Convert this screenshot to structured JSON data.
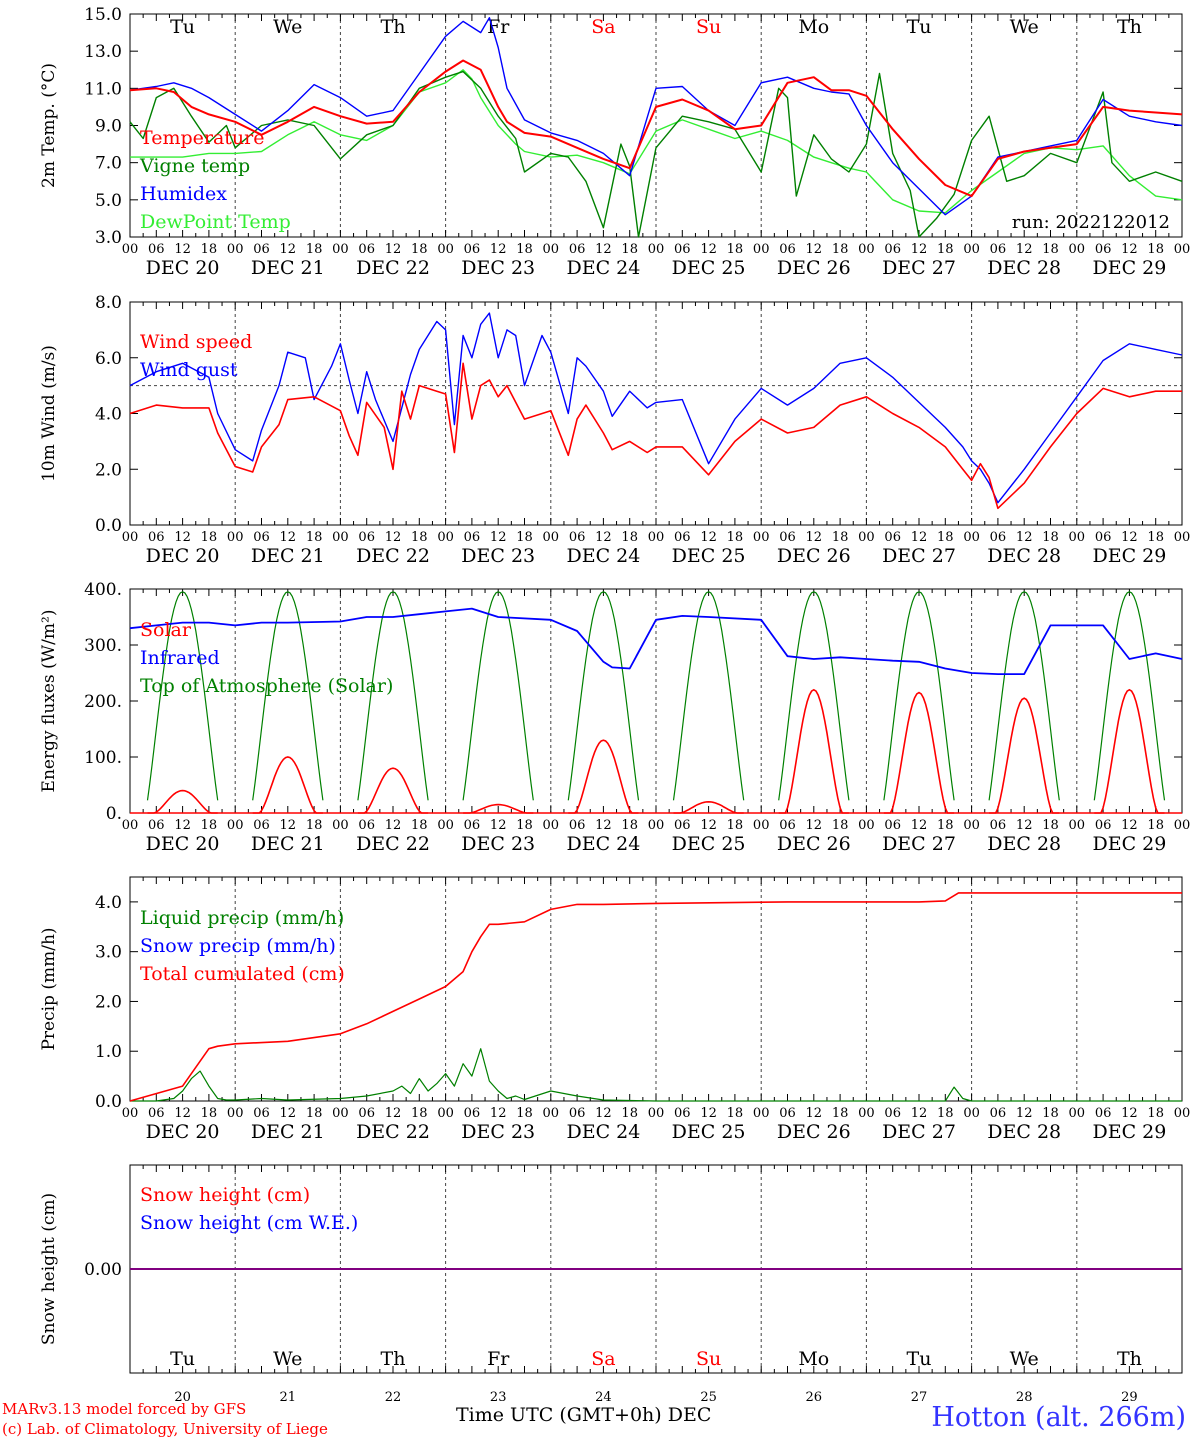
{
  "colors": {
    "red": "#ff0000",
    "green": "#008000",
    "blue": "#0000ff",
    "lightgreen": "#33ee33",
    "purple": "#800080",
    "axis": "#000000"
  },
  "days": [
    "Tu",
    "We",
    "Th",
    "Fr",
    "Sa",
    "Su",
    "Mo",
    "Tu",
    "We",
    "Th"
  ],
  "weekend_indices": [
    4,
    5
  ],
  "dates": [
    "DEC 20",
    "DEC 21",
    "DEC 22",
    "DEC 23",
    "DEC 24",
    "DEC 25",
    "DEC 26",
    "DEC 27",
    "DEC 28",
    "DEC 29"
  ],
  "hours": [
    "00",
    "06",
    "12",
    "18"
  ],
  "hour_end": "00",
  "day_numbers": [
    "20",
    "21",
    "22",
    "23",
    "24",
    "25",
    "26",
    "27",
    "28",
    "29"
  ],
  "run_label": "run: 2022122012",
  "footer": {
    "model": "MARv3.13 model forced by GFS",
    "lab": "(c) Lab. of Climatology, University of Liege",
    "xaxis_title": "Time UTC (GMT+0h) DEC",
    "station": "Hotton (alt. 266m)"
  },
  "chart_data": [
    {
      "id": "temp",
      "type": "line",
      "ylabel": "2m Temp. (°C)",
      "ylim": [
        3,
        15
      ],
      "yticks": [
        "3.0",
        "5.0",
        "7.0",
        "9.0",
        "11.0",
        "13.0",
        "15.0"
      ],
      "ytick_values": [
        3,
        5,
        7,
        9,
        11,
        13,
        15
      ],
      "x_unit": "hours since DEC 20 00 UTC",
      "xlim": [
        0,
        240
      ],
      "series": [
        {
          "name": "Temperature",
          "color": "#ff0000",
          "x": [
            0,
            6,
            10,
            14,
            18,
            24,
            30,
            36,
            42,
            48,
            54,
            60,
            66,
            72,
            76,
            80,
            84,
            86,
            90,
            96,
            102,
            108,
            114,
            120,
            126,
            132,
            138,
            144,
            150,
            156,
            160,
            164,
            168,
            174,
            180,
            186,
            192,
            198,
            204,
            210,
            216,
            222,
            228,
            234,
            240
          ],
          "y": [
            10.9,
            11.0,
            10.8,
            10.0,
            9.6,
            9.2,
            8.5,
            9.2,
            10.0,
            9.5,
            9.1,
            9.2,
            10.8,
            11.9,
            12.5,
            12.0,
            10.0,
            9.2,
            8.6,
            8.4,
            7.8,
            7.2,
            6.7,
            10.0,
            10.4,
            9.8,
            8.8,
            9.0,
            11.3,
            11.6,
            10.9,
            10.9,
            10.6,
            8.8,
            7.2,
            5.8,
            5.2,
            7.2,
            7.6,
            7.8,
            8.0,
            10.0,
            9.8,
            9.7,
            9.6
          ]
        },
        {
          "name": "Vigne temp",
          "color": "#008000",
          "x": [
            0,
            3,
            6,
            10,
            14,
            18,
            22,
            24,
            30,
            36,
            42,
            48,
            54,
            60,
            66,
            72,
            76,
            80,
            84,
            88,
            90,
            96,
            100,
            104,
            108,
            112,
            114,
            116,
            120,
            126,
            132,
            138,
            144,
            148,
            150,
            152,
            156,
            160,
            164,
            168,
            171,
            174,
            178,
            180,
            184,
            188,
            192,
            196,
            200,
            204,
            210,
            216,
            222,
            224,
            228,
            234,
            240
          ],
          "y": [
            9.2,
            8.3,
            10.5,
            11.0,
            9.5,
            8.1,
            9.0,
            7.8,
            9.0,
            9.3,
            9.0,
            7.2,
            8.5,
            9.0,
            11.0,
            11.6,
            11.9,
            11.0,
            9.5,
            8.3,
            6.5,
            7.5,
            7.3,
            6.0,
            3.5,
            8.0,
            6.8,
            3.0,
            7.8,
            9.5,
            9.2,
            8.8,
            6.5,
            11.0,
            10.5,
            5.2,
            8.5,
            7.2,
            6.5,
            8.0,
            11.8,
            7.5,
            5.5,
            3.0,
            4.0,
            5.3,
            8.2,
            9.5,
            6.0,
            6.3,
            7.5,
            7.0,
            10.8,
            7.0,
            6.0,
            6.5,
            6.0
          ]
        },
        {
          "name": "Humidex",
          "color": "#0000ff",
          "x": [
            0,
            6,
            10,
            14,
            18,
            24,
            30,
            36,
            42,
            48,
            54,
            60,
            66,
            72,
            76,
            80,
            82,
            84,
            86,
            90,
            96,
            102,
            108,
            114,
            120,
            126,
            132,
            138,
            144,
            150,
            156,
            160,
            164,
            168,
            174,
            180,
            186,
            192,
            198,
            204,
            210,
            216,
            222,
            228,
            234,
            240
          ],
          "y": [
            10.9,
            11.1,
            11.3,
            11.0,
            10.5,
            9.6,
            8.7,
            9.8,
            11.2,
            10.5,
            9.5,
            9.8,
            11.8,
            13.8,
            14.6,
            14.0,
            14.8,
            13.2,
            11.0,
            9.3,
            8.6,
            8.2,
            7.5,
            6.3,
            11.0,
            11.1,
            9.8,
            9.0,
            11.3,
            11.6,
            11.0,
            10.8,
            10.7,
            9.0,
            7.0,
            5.6,
            4.2,
            5.2,
            7.3,
            7.6,
            7.9,
            8.2,
            10.4,
            9.5,
            9.2,
            9.0
          ]
        },
        {
          "name": "DewPoint Temp",
          "color": "#33ee33",
          "x": [
            0,
            6,
            12,
            18,
            24,
            30,
            36,
            42,
            48,
            54,
            60,
            66,
            72,
            76,
            78,
            80,
            84,
            88,
            90,
            96,
            102,
            108,
            114,
            120,
            126,
            132,
            138,
            144,
            150,
            156,
            160,
            164,
            168,
            174,
            180,
            186,
            192,
            198,
            204,
            210,
            216,
            222,
            228,
            234,
            240
          ],
          "y": [
            7.3,
            7.3,
            7.3,
            7.5,
            7.5,
            7.6,
            8.5,
            9.2,
            8.5,
            8.2,
            9.0,
            10.8,
            11.3,
            12.0,
            11.5,
            10.5,
            9.0,
            8.0,
            7.6,
            7.3,
            7.4,
            7.0,
            6.4,
            8.7,
            9.3,
            8.8,
            8.3,
            8.7,
            8.2,
            7.3,
            7.0,
            6.7,
            6.5,
            5.0,
            4.4,
            4.3,
            5.5,
            6.5,
            7.5,
            7.8,
            7.7,
            7.9,
            6.3,
            5.2,
            5.0
          ]
        }
      ]
    },
    {
      "id": "wind",
      "type": "line",
      "ylabel": "10m Wind (m/s)",
      "ylim": [
        0,
        8
      ],
      "yticks": [
        "0.0",
        "2.0",
        "4.0",
        "6.0",
        "8.0"
      ],
      "ytick_values": [
        0,
        2,
        4,
        6,
        8
      ],
      "hline": 5,
      "x_unit": "hours since DEC 20 00 UTC",
      "xlim": [
        0,
        240
      ],
      "series": [
        {
          "name": "Wind speed",
          "color": "#ff0000",
          "x": [
            0,
            6,
            12,
            18,
            20,
            24,
            28,
            30,
            34,
            36,
            42,
            48,
            50,
            52,
            54,
            58,
            60,
            62,
            64,
            66,
            70,
            72,
            74,
            76,
            78,
            80,
            82,
            84,
            86,
            90,
            96,
            100,
            102,
            104,
            108,
            110,
            114,
            118,
            120,
            126,
            132,
            138,
            144,
            150,
            156,
            162,
            168,
            174,
            180,
            186,
            190,
            192,
            194,
            196,
            198,
            204,
            210,
            216,
            222,
            228,
            234,
            240
          ],
          "y": [
            4.0,
            4.3,
            4.2,
            4.2,
            3.3,
            2.1,
            1.9,
            2.8,
            3.6,
            4.5,
            4.6,
            4.1,
            3.2,
            2.5,
            4.4,
            3.5,
            2.0,
            4.8,
            3.8,
            5.0,
            4.8,
            4.7,
            2.6,
            5.8,
            3.8,
            5.0,
            5.2,
            4.6,
            5.0,
            3.8,
            4.1,
            2.5,
            3.8,
            4.3,
            3.3,
            2.7,
            3.0,
            2.6,
            2.8,
            2.8,
            1.8,
            3.0,
            3.8,
            3.3,
            3.5,
            4.3,
            4.6,
            4.0,
            3.5,
            2.8,
            2.0,
            1.6,
            2.2,
            1.7,
            0.6,
            1.5,
            2.8,
            4.0,
            4.9,
            4.6,
            4.8,
            4.8
          ]
        },
        {
          "name": "Wind gust",
          "color": "#0000ff",
          "x": [
            0,
            6,
            12,
            18,
            20,
            24,
            28,
            30,
            34,
            36,
            40,
            42,
            46,
            48,
            50,
            52,
            54,
            56,
            60,
            64,
            66,
            70,
            72,
            74,
            76,
            78,
            80,
            82,
            84,
            86,
            88,
            90,
            94,
            96,
            100,
            102,
            104,
            108,
            110,
            114,
            118,
            120,
            126,
            132,
            138,
            144,
            150,
            156,
            162,
            168,
            174,
            180,
            186,
            190,
            192,
            194,
            196,
            198,
            204,
            210,
            216,
            222,
            228,
            234,
            240
          ],
          "y": [
            5.0,
            5.5,
            5.8,
            5.3,
            4.0,
            2.7,
            2.3,
            3.4,
            5.0,
            6.2,
            6.0,
            4.5,
            5.7,
            6.5,
            5.2,
            4.0,
            5.5,
            4.5,
            3.0,
            5.4,
            6.3,
            7.3,
            7.0,
            3.6,
            6.8,
            6.0,
            7.2,
            7.6,
            6.0,
            7.0,
            6.8,
            5.0,
            6.8,
            6.2,
            4.0,
            6.0,
            5.7,
            4.8,
            3.9,
            4.8,
            4.2,
            4.4,
            4.5,
            2.2,
            3.8,
            4.9,
            4.3,
            4.9,
            5.8,
            6.0,
            5.3,
            4.4,
            3.5,
            2.8,
            2.3,
            2.0,
            1.5,
            0.8,
            2.0,
            3.3,
            4.6,
            5.9,
            6.5,
            6.3,
            6.1
          ]
        }
      ]
    },
    {
      "id": "energy",
      "type": "line",
      "ylabel": "Energy fluxes (W/m²)",
      "ylim": [
        0,
        400
      ],
      "yticks": [
        "0.",
        "100.",
        "200.",
        "300.",
        "400."
      ],
      "ytick_values": [
        0,
        100,
        200,
        300,
        400
      ],
      "x_unit": "hours since DEC 20 00 UTC",
      "xlim": [
        0,
        240
      ],
      "solar_peaks": [
        40,
        100,
        80,
        15,
        130,
        20,
        220,
        215,
        205,
        220
      ],
      "toa_peak": 395,
      "series": [
        {
          "name": "Solar",
          "color": "#ff0000"
        },
        {
          "name": "Infrared",
          "color": "#0000ff",
          "x": [
            0,
            6,
            12,
            18,
            24,
            30,
            36,
            48,
            54,
            60,
            66,
            72,
            78,
            84,
            96,
            102,
            108,
            110,
            114,
            120,
            126,
            132,
            144,
            150,
            156,
            162,
            168,
            174,
            180,
            186,
            192,
            198,
            204,
            210,
            216,
            222,
            228,
            234,
            240
          ],
          "y": [
            330,
            335,
            340,
            340,
            335,
            340,
            340,
            342,
            350,
            350,
            355,
            360,
            365,
            350,
            345,
            325,
            270,
            260,
            258,
            345,
            352,
            350,
            345,
            280,
            275,
            278,
            275,
            272,
            270,
            258,
            250,
            248,
            248,
            335,
            335,
            335,
            275,
            285,
            275
          ]
        },
        {
          "name": "Top of Atmosphere (Solar)",
          "color": "#008000"
        }
      ]
    },
    {
      "id": "precip",
      "type": "line",
      "ylabel": "Precip (mm/h)",
      "ylim": [
        0,
        4.5
      ],
      "yticks": [
        "0.0",
        "1.0",
        "2.0",
        "3.0",
        "4.0"
      ],
      "ytick_values": [
        0,
        1,
        2,
        3,
        4
      ],
      "x_unit": "hours since DEC 20 00 UTC",
      "xlim": [
        0,
        240
      ],
      "series": [
        {
          "name": "Liquid precip (mm/h)",
          "color": "#008000",
          "x": [
            0,
            6,
            10,
            12,
            14,
            16,
            18,
            20,
            22,
            24,
            30,
            36,
            48,
            54,
            60,
            62,
            64,
            66,
            68,
            70,
            72,
            74,
            76,
            78,
            80,
            82,
            84,
            86,
            88,
            90,
            96,
            102,
            108,
            114,
            120,
            132,
            144,
            180,
            186,
            188,
            190,
            192,
            240
          ],
          "y": [
            0,
            0,
            0.05,
            0.2,
            0.45,
            0.6,
            0.3,
            0.05,
            0.02,
            0.02,
            0.05,
            0.02,
            0.05,
            0.1,
            0.2,
            0.3,
            0.15,
            0.45,
            0.2,
            0.35,
            0.55,
            0.3,
            0.75,
            0.5,
            1.05,
            0.4,
            0.2,
            0.05,
            0.1,
            0.03,
            0.2,
            0.1,
            0.02,
            0.01,
            0,
            0,
            0,
            0,
            0,
            0.28,
            0.05,
            0,
            0
          ]
        },
        {
          "name": "Snow precip (mm/h)",
          "color": "#0000ff",
          "x": [
            0,
            240
          ],
          "y": [
            0,
            0
          ]
        },
        {
          "name": "Total cumulated (cm)",
          "color": "#ff0000",
          "x": [
            0,
            12,
            16,
            18,
            20,
            24,
            36,
            48,
            54,
            60,
            66,
            72,
            76,
            78,
            80,
            82,
            84,
            90,
            96,
            102,
            108,
            120,
            150,
            180,
            186,
            189,
            192,
            240
          ],
          "y": [
            0,
            0.3,
            0.8,
            1.05,
            1.1,
            1.15,
            1.2,
            1.35,
            1.55,
            1.8,
            2.05,
            2.3,
            2.6,
            3.0,
            3.3,
            3.55,
            3.55,
            3.6,
            3.85,
            3.95,
            3.95,
            3.97,
            4.0,
            4.0,
            4.02,
            4.18,
            4.18,
            4.18
          ]
        }
      ]
    },
    {
      "id": "snow",
      "type": "line",
      "ylabel": "Snow height (cm)",
      "yticks": [
        "0.00"
      ],
      "ytick_values": [
        0
      ],
      "ylim": [
        -1,
        1
      ],
      "x_unit": "hours since DEC 20 00 UTC",
      "xlim": [
        0,
        240
      ],
      "series": [
        {
          "name": "Snow height (cm)",
          "color": "#ff0000",
          "x": [
            0,
            240
          ],
          "y": [
            0,
            0
          ]
        },
        {
          "name": "Snow height (cm W.E.)",
          "color": "#0000ff",
          "x": [
            0,
            240
          ],
          "y": [
            0,
            0
          ]
        }
      ]
    }
  ]
}
